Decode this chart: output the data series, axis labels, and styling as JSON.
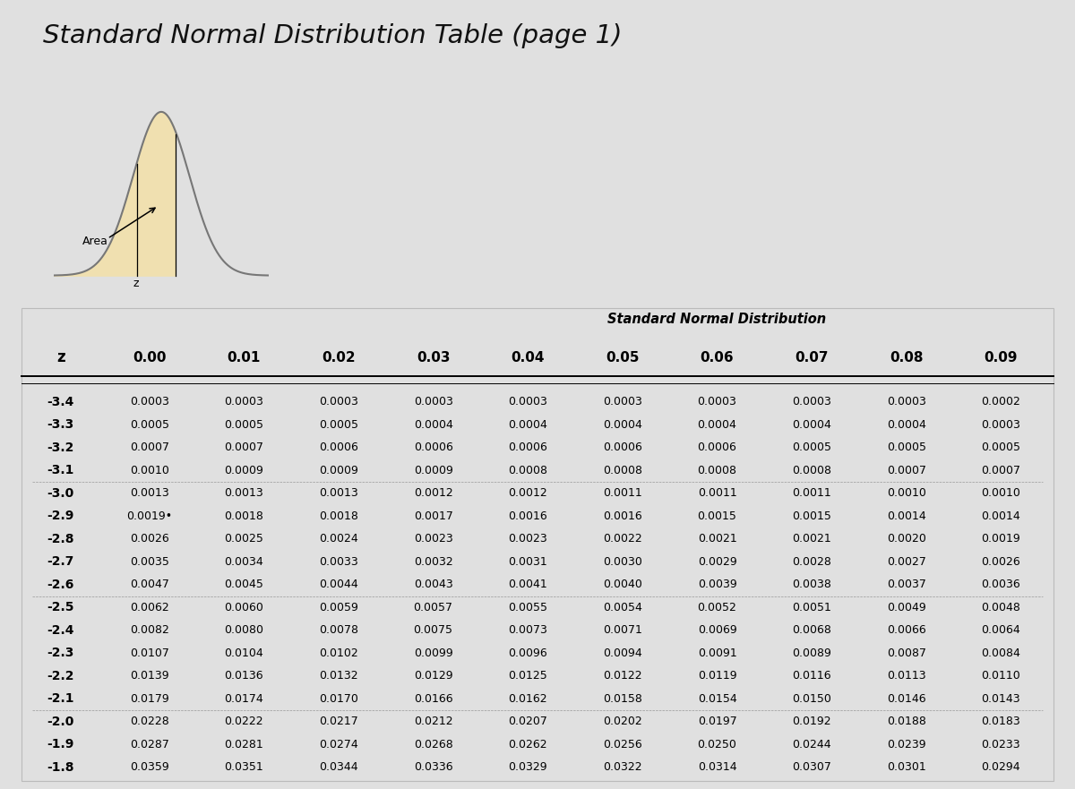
{
  "title": "Standard Normal Distribution Table (page 1)",
  "page_bg": "#e0e0e0",
  "table_bg": "#ffffff",
  "header_subtitle": "Standard Normal Distribution",
  "z_label": "z",
  "col_headers": [
    "0.00",
    "0.01",
    "0.02",
    "0.03",
    "0.04",
    "0.05",
    "0.06",
    "0.07",
    "0.08",
    "0.09"
  ],
  "row_labels": [
    "-3.4",
    "-3.3",
    "-3.2",
    "-3.1",
    "-3.0",
    "-2.9",
    "-2.8",
    "-2.7",
    "-2.6",
    "-2.5",
    "-2.4",
    "-2.3",
    "-2.2",
    "-2.1",
    "-2.0",
    "-1.9",
    "-1.8"
  ],
  "table_data": [
    [
      "0.0003",
      "0.0003",
      "0.0003",
      "0.0003",
      "0.0003",
      "0.0003",
      "0.0003",
      "0.0003",
      "0.0003",
      "0.0002"
    ],
    [
      "0.0005",
      "0.0005",
      "0.0005",
      "0.0004",
      "0.0004",
      "0.0004",
      "0.0004",
      "0.0004",
      "0.0004",
      "0.0003"
    ],
    [
      "0.0007",
      "0.0007",
      "0.0006",
      "0.0006",
      "0.0006",
      "0.0006",
      "0.0006",
      "0.0005",
      "0.0005",
      "0.0005"
    ],
    [
      "0.0010",
      "0.0009",
      "0.0009",
      "0.0009",
      "0.0008",
      "0.0008",
      "0.0008",
      "0.0008",
      "0.0007",
      "0.0007"
    ],
    [
      "0.0013",
      "0.0013",
      "0.0013",
      "0.0012",
      "0.0012",
      "0.0011",
      "0.0011",
      "0.0011",
      "0.0010",
      "0.0010"
    ],
    [
      "0.0019•",
      "0.0018",
      "0.0018",
      "0.0017",
      "0.0016",
      "0.0016",
      "0.0015",
      "0.0015",
      "0.0014",
      "0.0014"
    ],
    [
      "0.0026",
      "0.0025",
      "0.0024",
      "0.0023",
      "0.0023",
      "0.0022",
      "0.0021",
      "0.0021",
      "0.0020",
      "0.0019"
    ],
    [
      "0.0035",
      "0.0034",
      "0.0033",
      "0.0032",
      "0.0031",
      "0.0030",
      "0.0029",
      "0.0028",
      "0.0027",
      "0.0026"
    ],
    [
      "0.0047",
      "0.0045",
      "0.0044",
      "0.0043",
      "0.0041",
      "0.0040",
      "0.0039",
      "0.0038",
      "0.0037",
      "0.0036"
    ],
    [
      "0.0062",
      "0.0060",
      "0.0059",
      "0.0057",
      "0.0055",
      "0.0054",
      "0.0052",
      "0.0051",
      "0.0049",
      "0.0048"
    ],
    [
      "0.0082",
      "0.0080",
      "0.0078",
      "0.0075",
      "0.0073",
      "0.0071",
      "0.0069",
      "0.0068",
      "0.0066",
      "0.0064"
    ],
    [
      "0.0107",
      "0.0104",
      "0.0102",
      "0.0099",
      "0.0096",
      "0.0094",
      "0.0091",
      "0.0089",
      "0.0087",
      "0.0084"
    ],
    [
      "0.0139",
      "0.0136",
      "0.0132",
      "0.0129",
      "0.0125",
      "0.0122",
      "0.0119",
      "0.0116",
      "0.0113",
      "0.0110"
    ],
    [
      "0.0179",
      "0.0174",
      "0.0170",
      "0.0166",
      "0.0162",
      "0.0158",
      "0.0154",
      "0.0150",
      "0.0146",
      "0.0143"
    ],
    [
      "0.0228",
      "0.0222",
      "0.0217",
      "0.0212",
      "0.0207",
      "0.0202",
      "0.0197",
      "0.0192",
      "0.0188",
      "0.0183"
    ],
    [
      "0.0287",
      "0.0281",
      "0.0274",
      "0.0268",
      "0.0262",
      "0.0256",
      "0.0250",
      "0.0244",
      "0.0239",
      "0.0233"
    ],
    [
      "0.0359",
      "0.0351",
      "0.0344",
      "0.0336",
      "0.0329",
      "0.0322",
      "0.0314",
      "0.0307",
      "0.0301",
      "0.0294"
    ]
  ],
  "curve_color": "#777777",
  "fill_color": "#f0e0b0",
  "curve_label": "Area",
  "group_sep_rows": [
    4,
    9,
    14
  ]
}
